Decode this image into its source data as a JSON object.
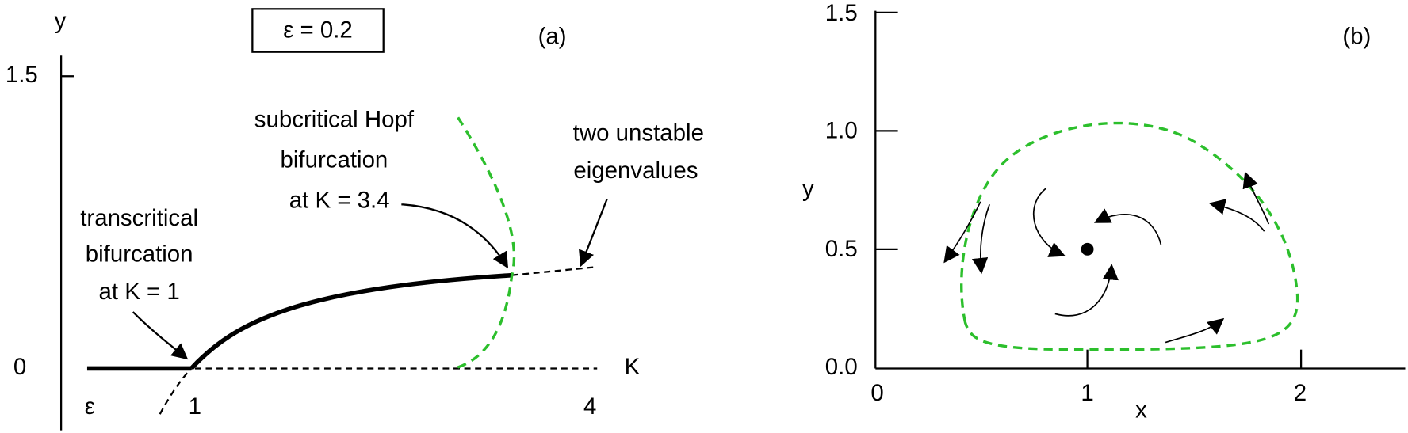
{
  "panel_a": {
    "label": "(a)",
    "parameter_box": "ε = 0.2",
    "y_axis_label": "y",
    "x_axis_label": "K",
    "y_tick_labels": [
      "1.5",
      "0"
    ],
    "x_tick_labels": [
      "ε",
      "1",
      "4"
    ],
    "annotations": {
      "hopf": [
        "subcritical Hopf",
        "bifurcation",
        "at K = 3.4"
      ],
      "unstable": [
        "two unstable",
        "eigenvalues"
      ],
      "transcritical": [
        "transcritical",
        "bifurcation",
        "at K = 1"
      ]
    }
  },
  "panel_b": {
    "label": "(b)",
    "y_axis_label": "y",
    "x_axis_label": "x",
    "y_tick_labels": [
      "1.5",
      "1.0",
      "0.5",
      "0.0"
    ],
    "x_tick_labels": [
      "0",
      "1",
      "2"
    ]
  }
}
